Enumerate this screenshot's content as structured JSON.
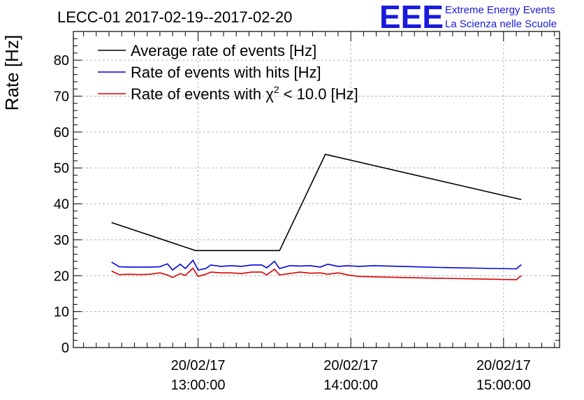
{
  "logo": {
    "mark": "EEE",
    "line1": "Extreme Energy Events",
    "line2": "La Scienza nelle Scuole",
    "color": "#1a1adb"
  },
  "chart_data": {
    "type": "line",
    "title": "LECC-01 2017-02-19--2017-02-20",
    "ylabel": "Rate [Hz]",
    "xlabel": "",
    "xlim": [
      "2017-02-20 12:11:00",
      "2017-02-20 15:22:00"
    ],
    "ylim": [
      0,
      88
    ],
    "yticks": [
      0,
      10,
      20,
      30,
      40,
      50,
      60,
      70,
      80
    ],
    "xticks": [
      {
        "x": "2017-02-20 13:00:00",
        "date": "20/02/17",
        "time": "13:00:00"
      },
      {
        "x": "2017-02-20 14:00:00",
        "date": "20/02/17",
        "time": "14:00:00"
      },
      {
        "x": "2017-02-20 15:00:00",
        "date": "20/02/17",
        "time": "15:00:00"
      }
    ],
    "grid": true,
    "legend_position": "top-left",
    "series": [
      {
        "name": "Average rate of events [Hz]",
        "color": "#000000",
        "points": [
          [
            "2017-02-20 12:26:00",
            34.8
          ],
          [
            "2017-02-20 12:59:00",
            27.0
          ],
          [
            "2017-02-20 13:32:00",
            27.0
          ],
          [
            "2017-02-20 13:50:00",
            53.8
          ],
          [
            "2017-02-20 15:07:00",
            41.2
          ]
        ]
      },
      {
        "name": "Rate of events with hits [Hz]",
        "color": "#0000dd",
        "points": [
          [
            "2017-02-20 12:26:00",
            23.8
          ],
          [
            "2017-02-20 12:29:00",
            22.5
          ],
          [
            "2017-02-20 12:33:00",
            22.4
          ],
          [
            "2017-02-20 12:37:00",
            22.4
          ],
          [
            "2017-02-20 12:41:00",
            22.4
          ],
          [
            "2017-02-20 12:45:00",
            22.5
          ],
          [
            "2017-02-20 12:48:00",
            23.3
          ],
          [
            "2017-02-20 12:50:00",
            21.6
          ],
          [
            "2017-02-20 12:53:00",
            23.2
          ],
          [
            "2017-02-20 12:55:00",
            22.0
          ],
          [
            "2017-02-20 12:58:00",
            24.3
          ],
          [
            "2017-02-20 13:00:00",
            21.6
          ],
          [
            "2017-02-20 13:03:00",
            22.0
          ],
          [
            "2017-02-20 13:05:00",
            23.0
          ],
          [
            "2017-02-20 13:09:00",
            22.6
          ],
          [
            "2017-02-20 13:13:00",
            22.8
          ],
          [
            "2017-02-20 13:17:00",
            22.6
          ],
          [
            "2017-02-20 13:21:00",
            23.0
          ],
          [
            "2017-02-20 13:25:00",
            23.0
          ],
          [
            "2017-02-20 13:27:00",
            22.2
          ],
          [
            "2017-02-20 13:30:00",
            24.0
          ],
          [
            "2017-02-20 13:32:00",
            22.0
          ],
          [
            "2017-02-20 13:36:00",
            22.8
          ],
          [
            "2017-02-20 13:40:00",
            22.7
          ],
          [
            "2017-02-20 13:44:00",
            22.8
          ],
          [
            "2017-02-20 13:48:00",
            22.4
          ],
          [
            "2017-02-20 13:51:00",
            23.2
          ],
          [
            "2017-02-20 13:55:00",
            22.6
          ],
          [
            "2017-02-20 13:59:00",
            22.8
          ],
          [
            "2017-02-20 14:03:00",
            22.6
          ],
          [
            "2017-02-20 14:09:00",
            22.8
          ],
          [
            "2017-02-20 14:20:00",
            22.6
          ],
          [
            "2017-02-20 14:35:00",
            22.3
          ],
          [
            "2017-02-20 14:50:00",
            22.1
          ],
          [
            "2017-02-20 15:05:00",
            21.9
          ],
          [
            "2017-02-20 15:07:00",
            23.1
          ]
        ]
      },
      {
        "name": "Rate of events with χ2 < 10.0 [Hz]",
        "label_parts": [
          "Rate of events with ",
          "χ",
          "2",
          " < 10.0 [Hz]"
        ],
        "color": "#dd0000",
        "points": [
          [
            "2017-02-20 12:26:00",
            21.3
          ],
          [
            "2017-02-20 12:29:00",
            20.3
          ],
          [
            "2017-02-20 12:33:00",
            20.4
          ],
          [
            "2017-02-20 12:37:00",
            20.3
          ],
          [
            "2017-02-20 12:41:00",
            20.4
          ],
          [
            "2017-02-20 12:45:00",
            20.8
          ],
          [
            "2017-02-20 12:48:00",
            20.2
          ],
          [
            "2017-02-20 12:50:00",
            19.5
          ],
          [
            "2017-02-20 12:53:00",
            20.6
          ],
          [
            "2017-02-20 12:55:00",
            20.1
          ],
          [
            "2017-02-20 12:58:00",
            22.1
          ],
          [
            "2017-02-20 13:00:00",
            19.8
          ],
          [
            "2017-02-20 13:03:00",
            20.4
          ],
          [
            "2017-02-20 13:05:00",
            21.0
          ],
          [
            "2017-02-20 13:09:00",
            20.8
          ],
          [
            "2017-02-20 13:13:00",
            20.8
          ],
          [
            "2017-02-20 13:17:00",
            20.6
          ],
          [
            "2017-02-20 13:21:00",
            21.0
          ],
          [
            "2017-02-20 13:25:00",
            21.0
          ],
          [
            "2017-02-20 13:27:00",
            20.2
          ],
          [
            "2017-02-20 13:30:00",
            21.8
          ],
          [
            "2017-02-20 13:32:00",
            20.2
          ],
          [
            "2017-02-20 13:36:00",
            20.6
          ],
          [
            "2017-02-20 13:40:00",
            21.0
          ],
          [
            "2017-02-20 13:44:00",
            20.7
          ],
          [
            "2017-02-20 13:48:00",
            20.8
          ],
          [
            "2017-02-20 13:51:00",
            20.4
          ],
          [
            "2017-02-20 13:55:00",
            20.8
          ],
          [
            "2017-02-20 13:59:00",
            20.2
          ],
          [
            "2017-02-20 14:03:00",
            19.8
          ],
          [
            "2017-02-20 14:09:00",
            19.7
          ],
          [
            "2017-02-20 14:20:00",
            19.5
          ],
          [
            "2017-02-20 14:35:00",
            19.3
          ],
          [
            "2017-02-20 14:50:00",
            19.1
          ],
          [
            "2017-02-20 15:05:00",
            18.9
          ],
          [
            "2017-02-20 15:07:00",
            20.0
          ]
        ]
      }
    ]
  }
}
